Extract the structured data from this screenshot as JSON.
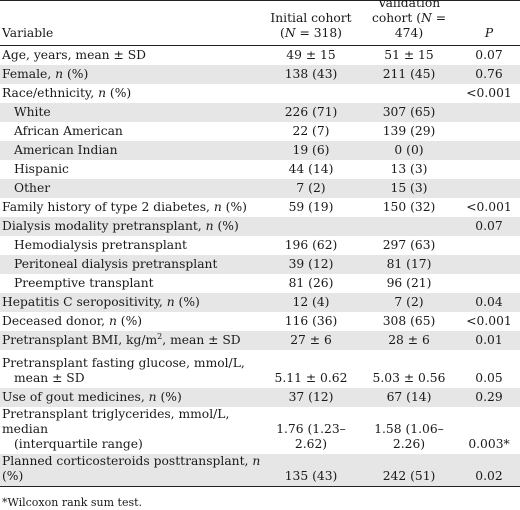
{
  "header": {
    "variable": "Variable",
    "initial_line1": "Initial cohort",
    "initial_line2": "(N = 318)",
    "validation_line1": "Validation",
    "validation_line2": "cohort (N = 474)",
    "p": "P"
  },
  "rows": [
    {
      "label": "Age, years, mean ± SD",
      "initial": "49 ± 15",
      "validation": "51 ± 15",
      "p": "0.07",
      "shaded": false,
      "indent": false
    },
    {
      "label": "Female, n (%)",
      "initial": "138 (43)",
      "validation": "211 (45)",
      "p": "0.76",
      "shaded": true,
      "indent": false
    },
    {
      "label": "Race/ethnicity, n (%)",
      "initial": "",
      "validation": "",
      "p": "<0.001",
      "shaded": false,
      "indent": false
    },
    {
      "label": "White",
      "initial": "226 (71)",
      "validation": "307 (65)",
      "p": "",
      "shaded": true,
      "indent": true
    },
    {
      "label": "African American",
      "initial": "22 (7)",
      "validation": "139 (29)",
      "p": "",
      "shaded": false,
      "indent": true
    },
    {
      "label": "American Indian",
      "initial": "19 (6)",
      "validation": "0 (0)",
      "p": "",
      "shaded": true,
      "indent": true
    },
    {
      "label": "Hispanic",
      "initial": "44 (14)",
      "validation": "13 (3)",
      "p": "",
      "shaded": false,
      "indent": true
    },
    {
      "label": "Other",
      "initial": "7 (2)",
      "validation": "15 (3)",
      "p": "",
      "shaded": true,
      "indent": true
    },
    {
      "label": "Family history of type 2 diabetes, n (%)",
      "initial": "59 (19)",
      "validation": "150 (32)",
      "p": "<0.001",
      "shaded": false,
      "indent": false
    },
    {
      "label": "Dialysis modality pretransplant, n (%)",
      "initial": "",
      "validation": "",
      "p": "0.07",
      "shaded": true,
      "indent": false
    },
    {
      "label": "Hemodialysis pretransplant",
      "initial": "196 (62)",
      "validation": "297 (63)",
      "p": "",
      "shaded": false,
      "indent": true
    },
    {
      "label": "Peritoneal dialysis pretransplant",
      "initial": "39 (12)",
      "validation": "81 (17)",
      "p": "",
      "shaded": true,
      "indent": true
    },
    {
      "label": "Preemptive transplant",
      "initial": "81 (26)",
      "validation": "96 (21)",
      "p": "",
      "shaded": false,
      "indent": true
    },
    {
      "label": "Hepatitis C seropositivity, n (%)",
      "initial": "12 (4)",
      "validation": "7 (2)",
      "p": "0.04",
      "shaded": true,
      "indent": false
    },
    {
      "label": "Deceased donor, n (%)",
      "initial": "116 (36)",
      "validation": "308 (65)",
      "p": "<0.001",
      "shaded": false,
      "indent": false
    },
    {
      "label": "Pretransplant BMI, kg/m², mean ± SD",
      "initial": "27 ± 6",
      "validation": "28 ± 6",
      "p": "0.01",
      "shaded": true,
      "indent": false
    }
  ],
  "multirows": [
    {
      "line1": "Pretransplant fasting glucose, mmol/L,",
      "line2": "mean ± SD",
      "initial": "5.11 ± 0.62",
      "validation": "5.03 ± 0.56",
      "p": "0.05",
      "shaded": false
    },
    {
      "line1": "Use of gout medicines, n (%)",
      "line2": "",
      "initial": "37 (12)",
      "validation": "67 (14)",
      "p": "0.29",
      "shaded": true,
      "single": true
    },
    {
      "line1": "Pretransplant triglycerides, mmol/L, median",
      "line2": "(interquartile range)",
      "initial": "1.76 (1.23–2.62)",
      "validation": "1.58 (1.06–2.26)",
      "p": "0.003*",
      "shaded": false
    },
    {
      "line1": "Planned corticosteroids posttransplant, n (%)",
      "line2": "",
      "initial": "135 (43)",
      "validation": "242 (51)",
      "p": "0.02",
      "shaded": true,
      "single": true
    }
  ],
  "footnote": "*Wilcoxon rank sum test."
}
